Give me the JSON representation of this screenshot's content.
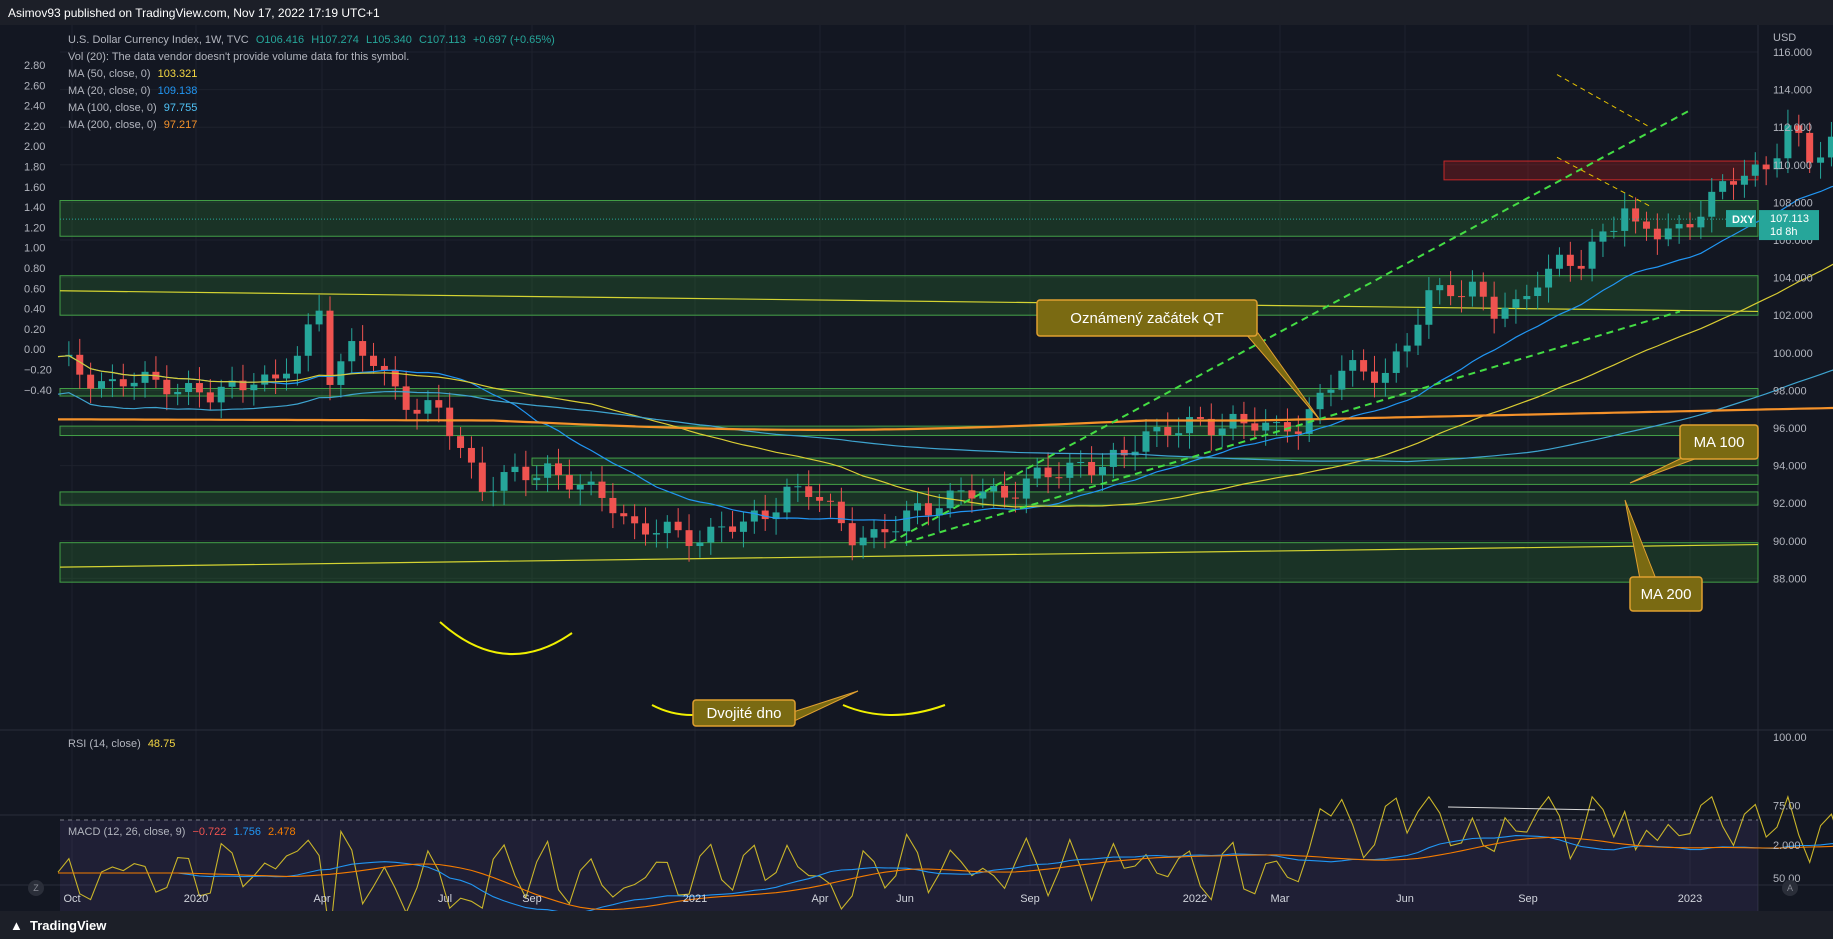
{
  "header": {
    "published": "Asimov93 published on TradingView.com, Nov 17, 2022 17:19 UTC+1"
  },
  "footer": {
    "logo_text": "TradingView",
    "zoom_btn": "Z",
    "auto_btn": "A"
  },
  "colors": {
    "bg": "#131722",
    "up": "#26a69a",
    "down": "#ef5350",
    "grid": "#1e222d",
    "ma50": "#d9cc33",
    "ma20": "#2196f3",
    "ma100": "#3ea4cf",
    "ma200": "#f5922a",
    "zone": "#1b5e20",
    "annotation_bg": "#7a6a12",
    "rsi": "#c9b52a",
    "macd": "#2196f3",
    "signal": "#f57c00"
  },
  "legend": {
    "symbol": "U.S. Dollar Currency Index, 1W, TVC",
    "ohlc": {
      "o": "O106.416",
      "h": "H107.274",
      "l": "L105.340",
      "c": "C107.113",
      "chg": "+0.697 (+0.65%)"
    },
    "vol": "Vol (20): The data vendor doesn't provide volume data for this symbol.",
    "ma": [
      {
        "label": "MA (50, close, 0)",
        "value": "103.321",
        "color": "#f5d742"
      },
      {
        "label": "MA (20, close, 0)",
        "value": "109.138",
        "color": "#2196f3"
      },
      {
        "label": "MA (100, close, 0)",
        "value": "97.755",
        "color": "#4fc3f7"
      },
      {
        "label": "MA (200, close, 0)",
        "value": "97.217",
        "color": "#f5922a"
      }
    ]
  },
  "rsi_legend": {
    "label": "RSI (14, close)",
    "value": "48.75"
  },
  "macd_legend": {
    "label": "MACD (12, 26, close, 9)",
    "v1": "−0.722",
    "v2": "1.756",
    "v3": "2.478"
  },
  "price_axis": {
    "currency": "USD",
    "ticks": [
      "116.000",
      "114.000",
      "112.000",
      "110.000",
      "108.000",
      "106.000",
      "104.000",
      "102.000",
      "100.000",
      "98.000",
      "96.000",
      "94.000",
      "92.000",
      "90.000",
      "88.000"
    ]
  },
  "left_axis": {
    "ticks": [
      "2.80",
      "2.60",
      "2.40",
      "2.20",
      "2.00",
      "1.80",
      "1.60",
      "1.40",
      "1.20",
      "1.00",
      "0.80",
      "0.60",
      "0.40",
      "0.20",
      "0.00",
      "−0.20",
      "−0.40"
    ]
  },
  "rsi_axis": {
    "ticks": [
      "100.00",
      "75.00",
      "50.00"
    ]
  },
  "macd_axis": {
    "ticks": [
      "2.000"
    ]
  },
  "time_axis": {
    "labels": [
      "Oct",
      "2020",
      "Apr",
      "Jul",
      "Sep",
      "2021",
      "Apr",
      "Jun",
      "Sep",
      "2022",
      "Mar",
      "Jun",
      "Sep",
      "2023"
    ]
  },
  "price_tag": {
    "symbol": "DXY",
    "price": "107.113",
    "countdown": "1d 8h"
  },
  "annotations": {
    "qt": "Oznámený začátek QT",
    "double_bottom": "Dvojité dno",
    "ma100": "MA 100",
    "ma200": "MA 200"
  }
}
